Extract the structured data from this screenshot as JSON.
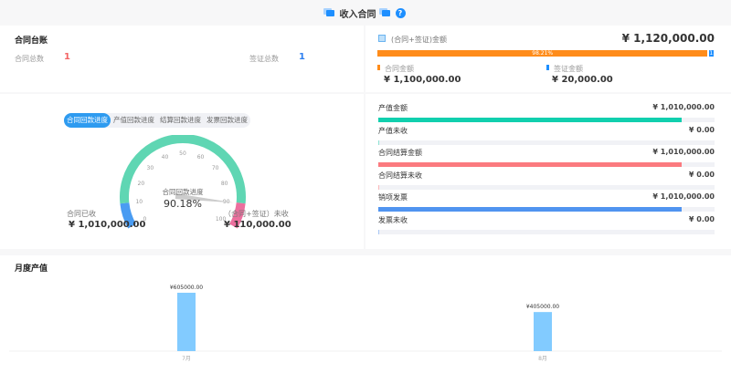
{
  "header": {
    "title": "收入合同",
    "help_icon": "question-icon"
  },
  "ledger": {
    "title": "合同台账",
    "contract_count_label": "合同总数",
    "contract_count": "1",
    "visa_count_label": "签证总数",
    "visa_count": "1"
  },
  "amount": {
    "title": "(合同+签证)金额",
    "total": "¥ 1,120,000.00",
    "contract_pct": 98.21,
    "contract_pct_label": "98.21%",
    "visa_pct_label": "1.",
    "contract_label": "合同金额",
    "contract_value": "¥ 1,100,000.00",
    "visa_label": "签证金额",
    "visa_value": "¥ 20,000.00",
    "colors": {
      "contract": "#ff8c1a",
      "visa": "#1e8fff"
    }
  },
  "progress": {
    "tabs": [
      "合同回款进度",
      "产值回款进度",
      "结算回款进度",
      "发票回款进度"
    ],
    "active_tab": 0,
    "gauge": {
      "name": "合同回款进度",
      "value": 90.18,
      "value_label": "90.18%",
      "ticks": [
        "0",
        "10",
        "20",
        "30",
        "40",
        "50",
        "60",
        "70",
        "80",
        "90",
        "100"
      ],
      "colors": {
        "low": "#4a9cf2",
        "mid": "#5fd6b3",
        "high": "#ec6f9e"
      }
    },
    "received_label": "合同已收",
    "received_value": "¥ 1,010,000.00",
    "unreceived_label": "（合同+签证）未收",
    "unreceived_value": "¥ 110,000.00"
  },
  "stats": [
    {
      "label": "产值金额",
      "value": "¥ 1,010,000.00",
      "pct": 90.2,
      "color": "#11cfae"
    },
    {
      "label": "产值未收",
      "value": "¥ 0.00",
      "pct": 0.3,
      "color": "#8fe3d4"
    },
    {
      "label": "合同结算金额",
      "value": "¥ 1,010,000.00",
      "pct": 90.2,
      "color": "#fb7a7f"
    },
    {
      "label": "合同结算未收",
      "value": "¥ 0.00",
      "pct": 0.3,
      "color": "#fbb8ba"
    },
    {
      "label": "销项发票",
      "value": "¥ 1,010,000.00",
      "pct": 90.2,
      "color": "#5094f0"
    },
    {
      "label": "发票未收",
      "value": "¥ 0.00",
      "pct": 0.3,
      "color": "#a9c8f5"
    }
  ],
  "chart_data": {
    "type": "bar",
    "title": "月度产值",
    "categories": [
      "7月",
      "8月"
    ],
    "values": [
      605000,
      405000
    ],
    "data_labels": [
      "¥605000.00",
      "¥405000.00"
    ],
    "color": "#82cbff",
    "ylim": [
      0,
      605000
    ]
  }
}
